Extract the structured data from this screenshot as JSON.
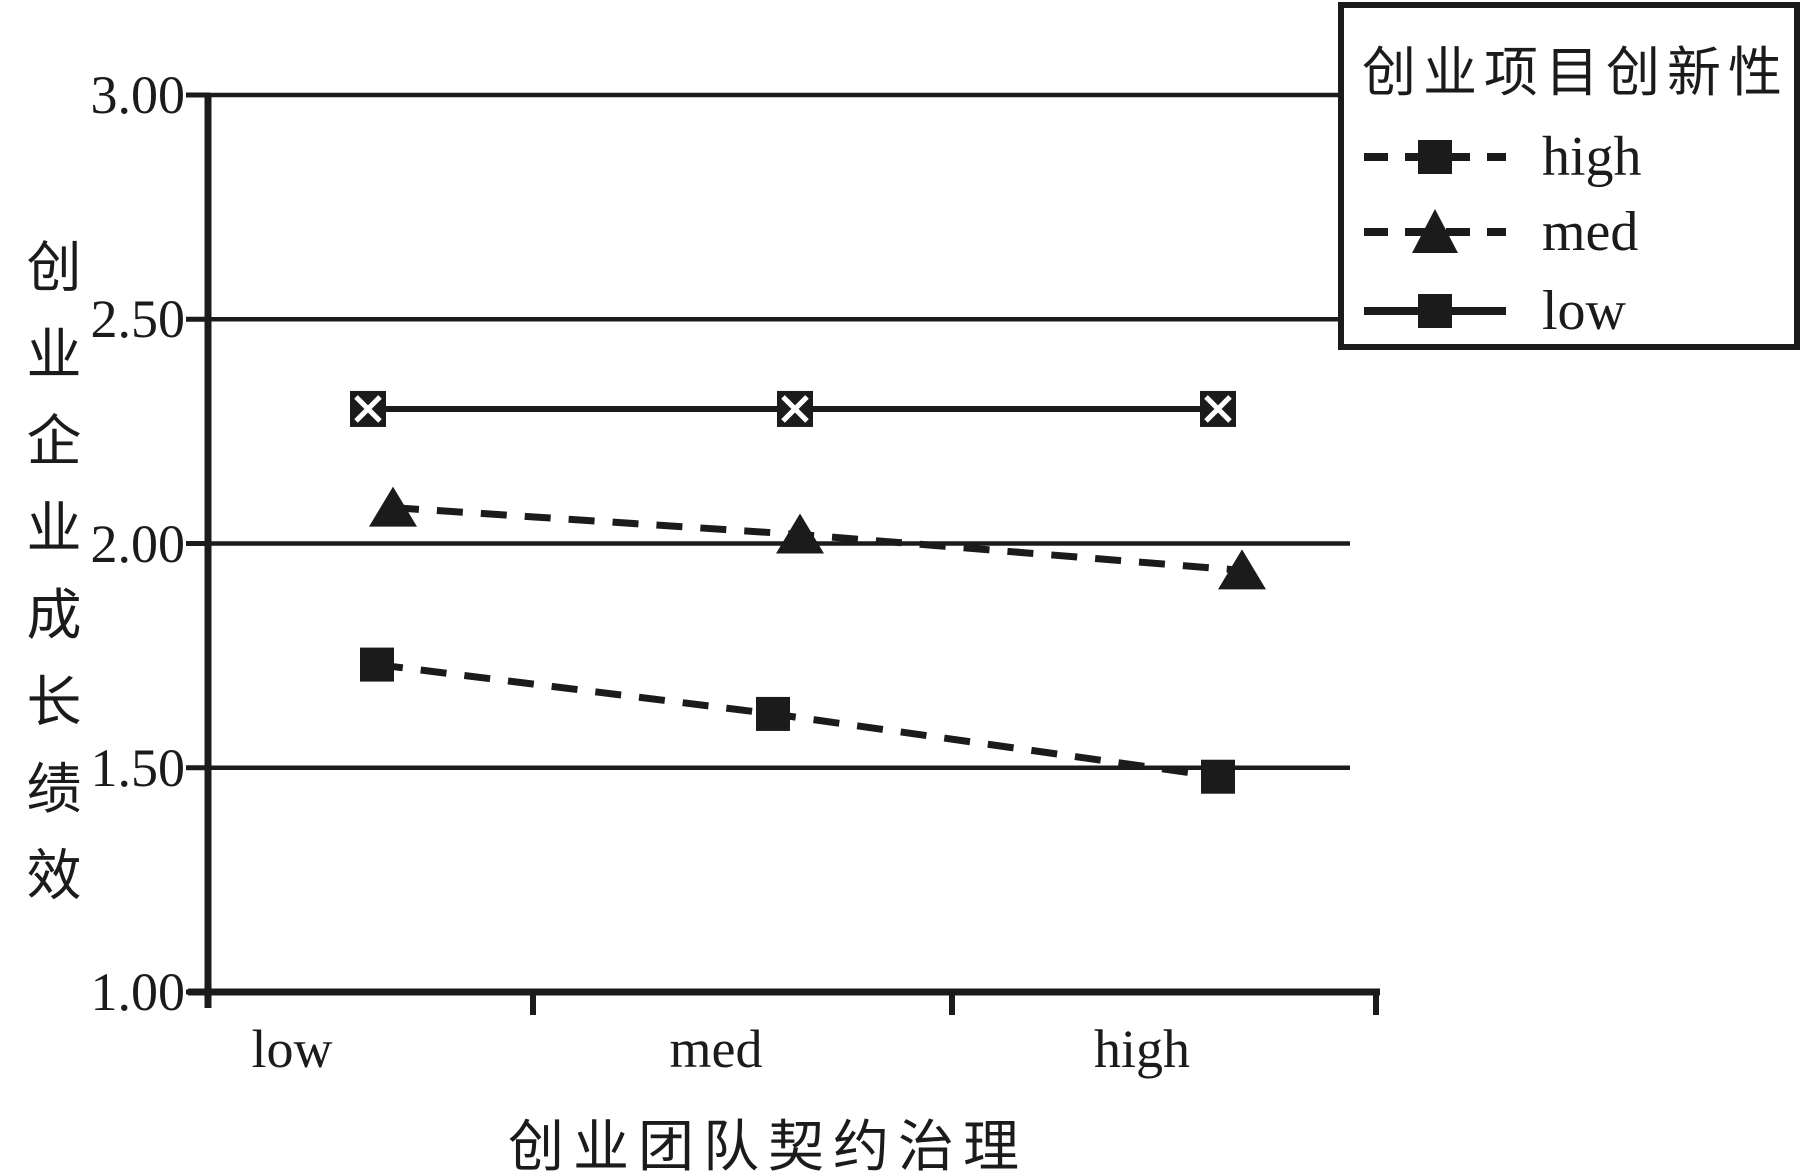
{
  "chart_data": {
    "type": "line",
    "title": "",
    "categories": [
      "low",
      "med",
      "high"
    ],
    "series": [
      {
        "name": "high",
        "values": [
          1.73,
          1.62,
          1.48
        ],
        "line_style": "dashed",
        "marker": "square"
      },
      {
        "name": "med",
        "values": [
          2.08,
          2.02,
          1.94
        ],
        "line_style": "dashed",
        "marker": "triangle"
      },
      {
        "name": "low",
        "values": [
          2.3,
          2.3,
          2.3
        ],
        "line_style": "solid",
        "marker": "square-x"
      }
    ],
    "xlabel": "创业团队契约治理",
    "ylabel": "创业企业成长绩效",
    "legend_title": "创业项目创新性",
    "y_ticks": [
      "3.00",
      "2.50",
      "2.00",
      "1.50",
      "1.00"
    ],
    "ylim": [
      1.0,
      3.0
    ],
    "grid": "horizontal-only",
    "legend_position": "top-right",
    "colors": {
      "foreground": "#1b1b1b",
      "background": "#ffffff"
    }
  }
}
